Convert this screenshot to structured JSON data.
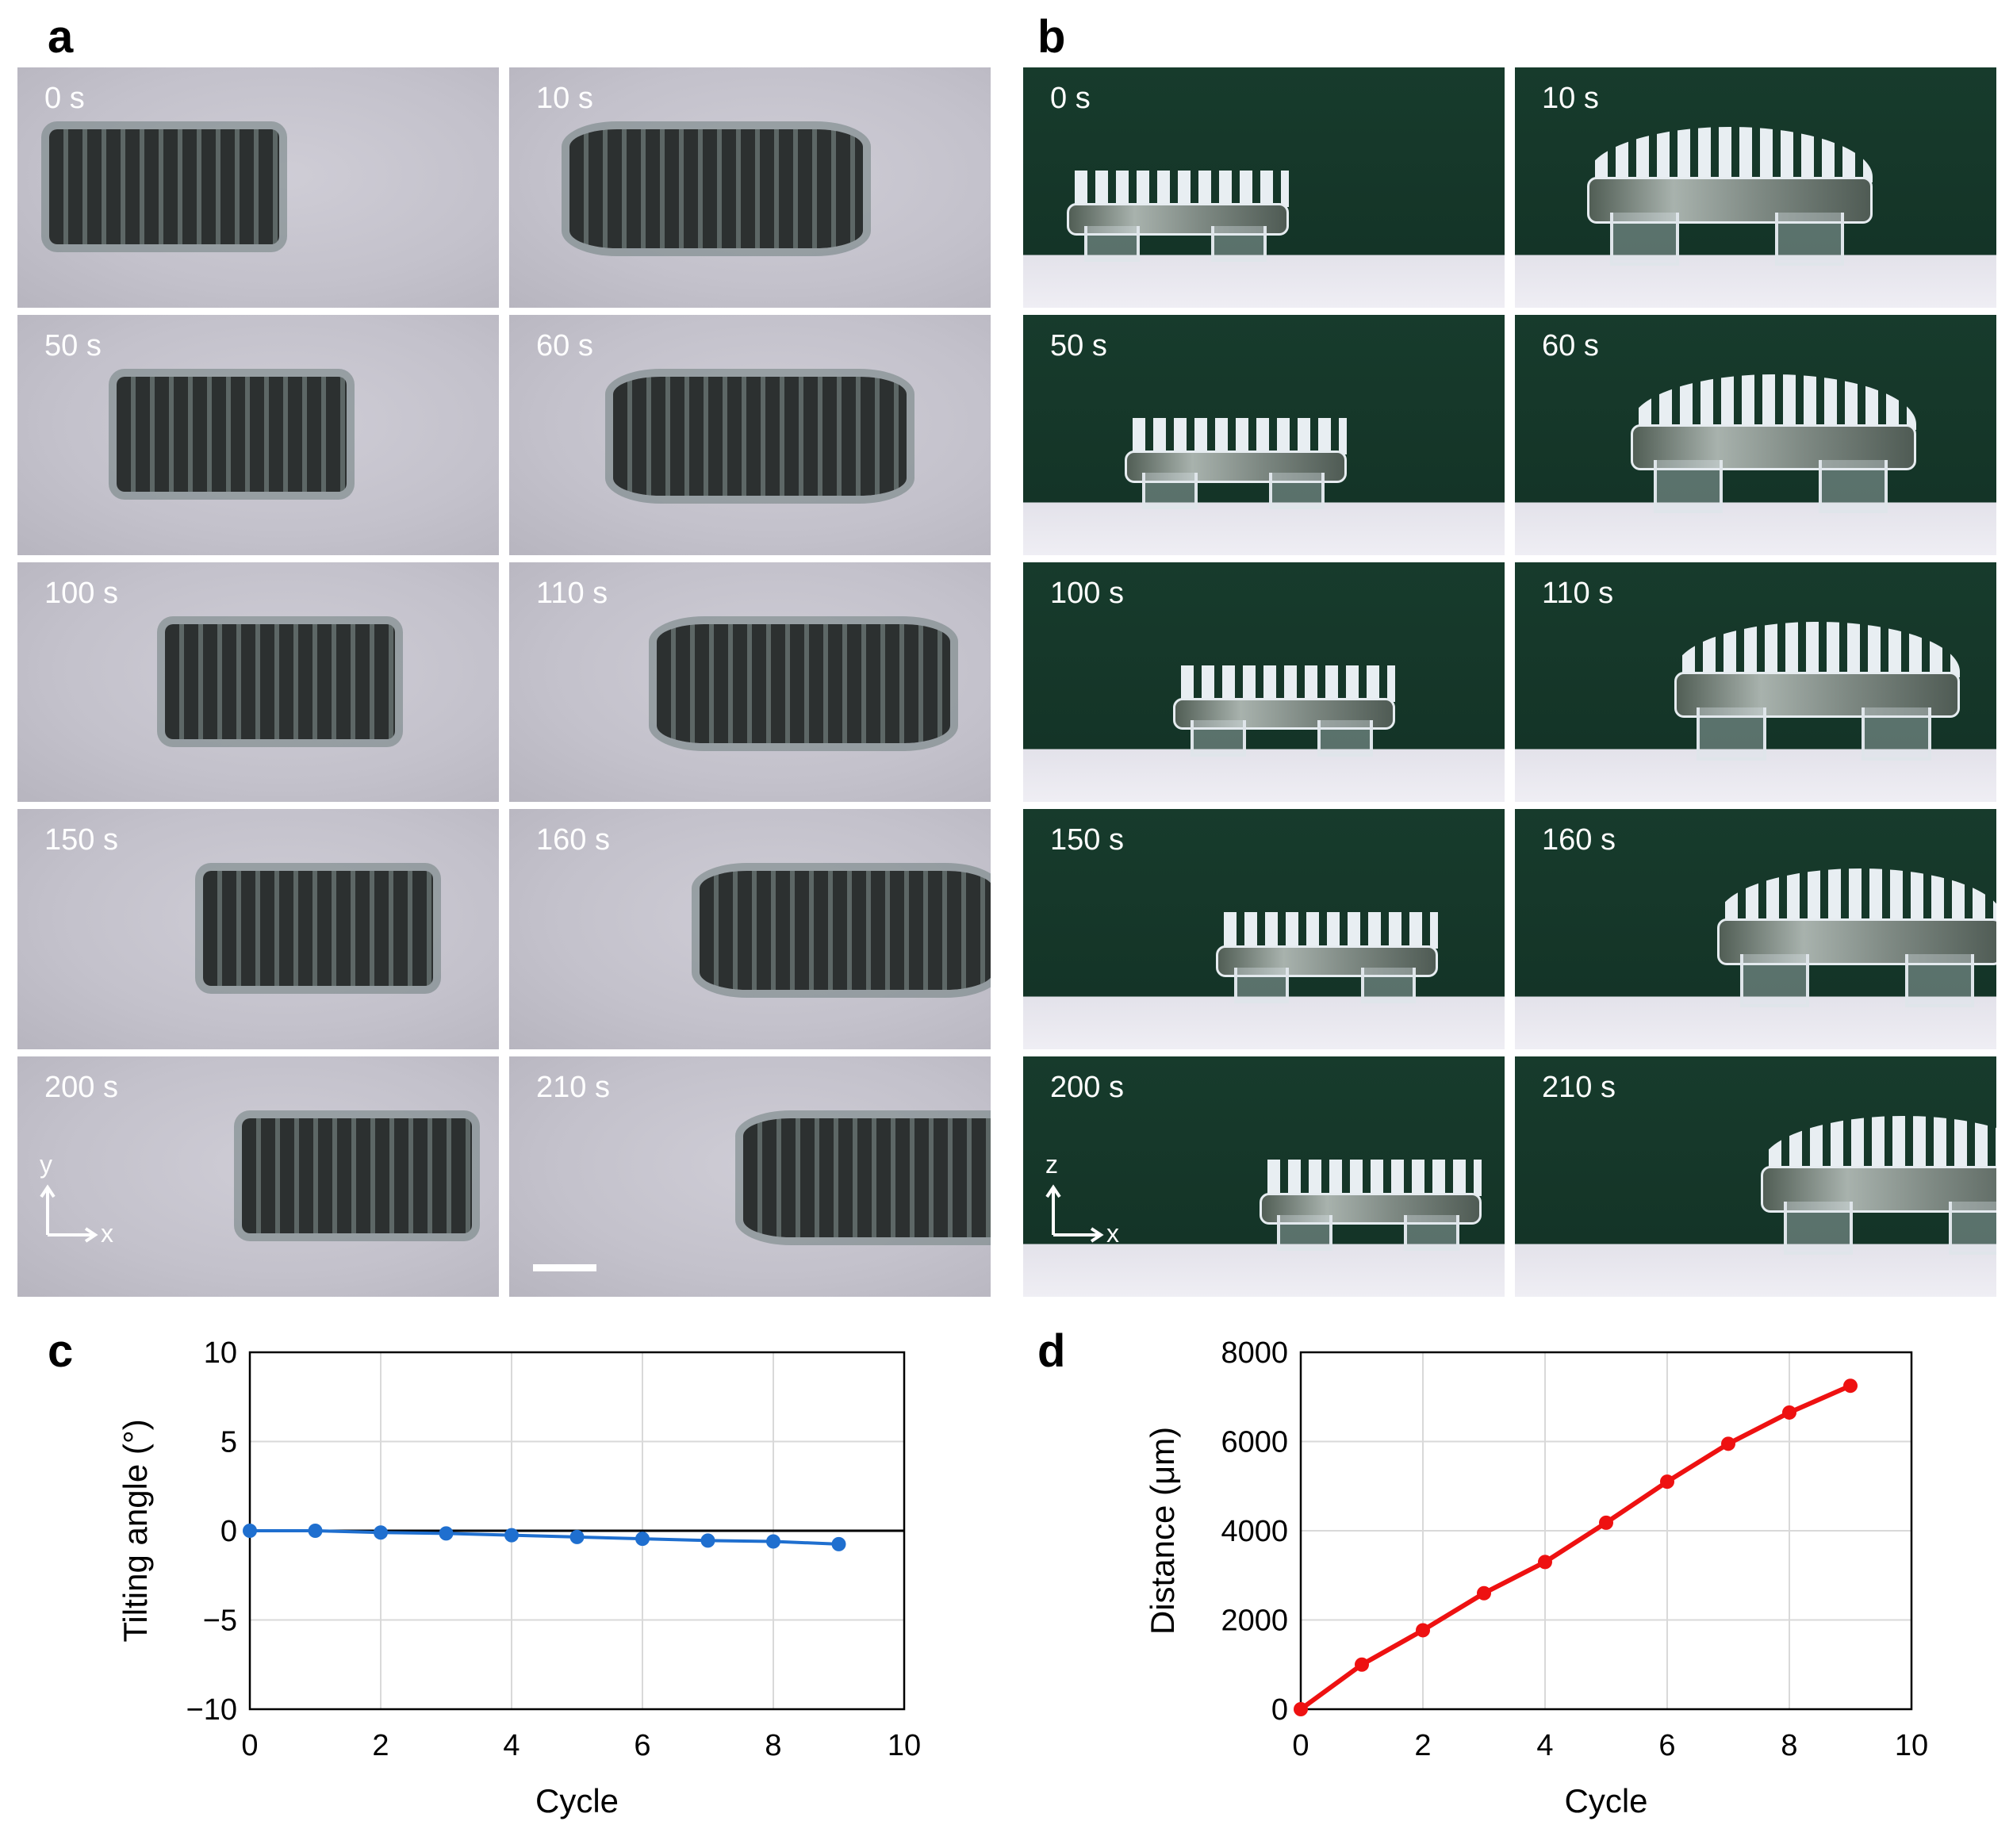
{
  "panels": {
    "a": {
      "letter": "a",
      "frames": [
        {
          "time": "0 s",
          "shift": 0.0,
          "bent": false
        },
        {
          "time": "10 s",
          "shift": 0.06,
          "bent": true
        },
        {
          "time": "50 s",
          "shift": 0.14,
          "bent": false
        },
        {
          "time": "60 s",
          "shift": 0.15,
          "bent": true
        },
        {
          "time": "100 s",
          "shift": 0.24,
          "bent": false
        },
        {
          "time": "110 s",
          "shift": 0.24,
          "bent": true
        },
        {
          "time": "150 s",
          "shift": 0.32,
          "bent": false
        },
        {
          "time": "160 s",
          "shift": 0.33,
          "bent": true
        },
        {
          "time": "200 s",
          "shift": 0.4,
          "bent": false
        },
        {
          "time": "210 s",
          "shift": 0.42,
          "bent": true
        }
      ],
      "axis": {
        "vertical": "y",
        "horizontal": "x"
      }
    },
    "b": {
      "letter": "b",
      "frames": [
        {
          "time": "0 s",
          "shift": 0.0,
          "bent": false
        },
        {
          "time": "10 s",
          "shift": 0.06,
          "bent": true
        },
        {
          "time": "50 s",
          "shift": 0.12,
          "bent": false
        },
        {
          "time": "60 s",
          "shift": 0.15,
          "bent": true
        },
        {
          "time": "100 s",
          "shift": 0.22,
          "bent": false
        },
        {
          "time": "110 s",
          "shift": 0.24,
          "bent": true
        },
        {
          "time": "150 s",
          "shift": 0.31,
          "bent": false
        },
        {
          "time": "160 s",
          "shift": 0.33,
          "bent": true
        },
        {
          "time": "200 s",
          "shift": 0.4,
          "bent": false
        },
        {
          "time": "210 s",
          "shift": 0.42,
          "bent": true
        }
      ],
      "axis": {
        "vertical": "z",
        "horizontal": "x"
      }
    },
    "c": {
      "letter": "c"
    },
    "d": {
      "letter": "d"
    }
  },
  "chart_data": [
    {
      "panel": "c",
      "type": "line",
      "xlabel": "Cycle",
      "ylabel": "Tilting angle (°)",
      "xlim": [
        0,
        10
      ],
      "ylim": [
        -10,
        10
      ],
      "xticks": [
        0,
        2,
        4,
        6,
        8,
        10
      ],
      "yticks": [
        -10,
        -5,
        0,
        5,
        10
      ],
      "ytick_labels": [
        "−10",
        "−5",
        "0",
        "5",
        "10"
      ],
      "grid": true,
      "zero_line": true,
      "series": [
        {
          "color": "#1f6fcf",
          "x": [
            0,
            1,
            2,
            3,
            4,
            5,
            6,
            7,
            8,
            9
          ],
          "y": [
            0,
            0,
            -0.1,
            -0.15,
            -0.25,
            -0.35,
            -0.45,
            -0.55,
            -0.6,
            -0.75
          ]
        }
      ]
    },
    {
      "panel": "d",
      "type": "line",
      "xlabel": "Cycle",
      "ylabel": "Distance (μm)",
      "xlim": [
        0,
        10
      ],
      "ylim": [
        0,
        8000
      ],
      "xticks": [
        0,
        2,
        4,
        6,
        8,
        10
      ],
      "yticks": [
        0,
        2000,
        4000,
        6000,
        8000
      ],
      "ytick_labels": [
        "0",
        "2000",
        "4000",
        "6000",
        "8000"
      ],
      "grid": true,
      "zero_line": false,
      "series": [
        {
          "color": "#ee1111",
          "x": [
            0,
            1,
            2,
            3,
            4,
            5,
            6,
            7,
            8,
            9
          ],
          "y": [
            0,
            1000,
            1770,
            2600,
            3300,
            4180,
            5100,
            5950,
            6650,
            7250
          ]
        }
      ]
    }
  ]
}
